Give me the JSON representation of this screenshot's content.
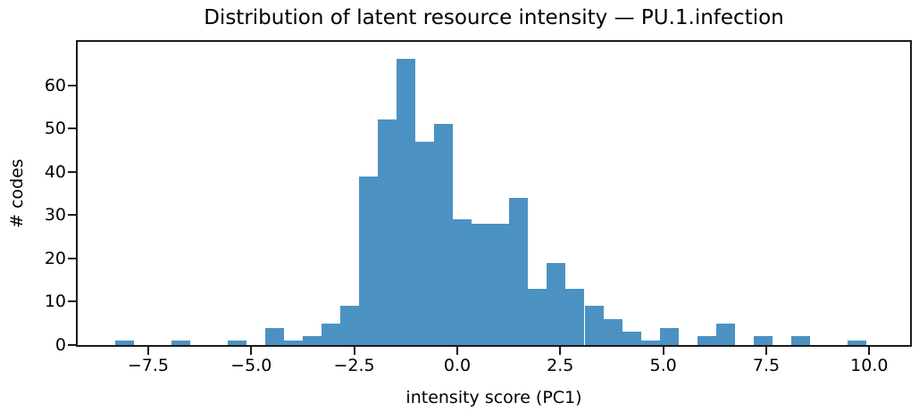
{
  "title": "Distribution of latent resource intensity — PU.1.infection",
  "chart_data": {
    "type": "bar",
    "subtype": "histogram",
    "title": "Distribution of latent resource intensity — PU.1.infection",
    "xlabel": "intensity score (PC1)",
    "ylabel": "# codes",
    "bin_start": -8.31,
    "bin_width": 0.456,
    "counts": [
      1,
      0,
      0,
      1,
      0,
      0,
      1,
      0,
      4,
      1,
      2,
      5,
      9,
      39,
      52,
      66,
      47,
      51,
      29,
      28,
      28,
      34,
      13,
      19,
      13,
      9,
      6,
      3,
      1,
      4,
      0,
      2,
      5,
      0,
      2,
      0,
      2,
      0,
      0,
      1
    ],
    "total_count": 478,
    "xlim": [
      -9.21,
      10.99
    ],
    "ylim": [
      0,
      70
    ],
    "x_ticks": [
      -7.5,
      -5.0,
      -2.5,
      0.0,
      2.5,
      5.0,
      7.5,
      10.0
    ],
    "x_tick_labels": [
      "−7.5",
      "−5.0",
      "−2.5",
      "0.0",
      "2.5",
      "5.0",
      "7.5",
      "10.0"
    ],
    "y_ticks": [
      0,
      10,
      20,
      30,
      40,
      50,
      60
    ],
    "y_tick_labels": [
      "0",
      "10",
      "20",
      "30",
      "40",
      "50",
      "60"
    ],
    "bar_color": "#4b92c3",
    "axis_color": "#1a1a1a",
    "background_color": "#ffffff",
    "grid": false,
    "legend": null
  }
}
